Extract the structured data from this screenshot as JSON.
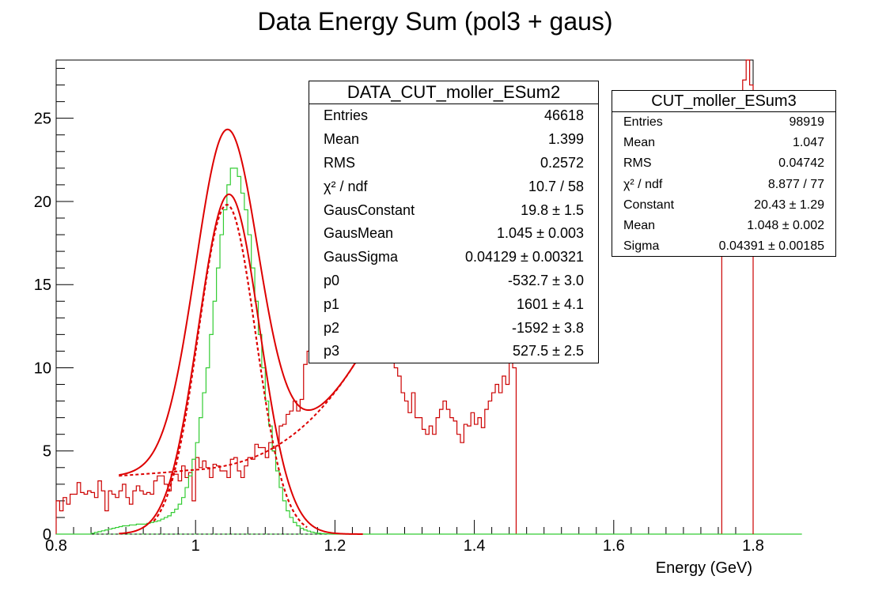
{
  "chart_data": {
    "type": "histogram",
    "title": "Data Energy Sum (pol3 + gaus)",
    "xlabel": "Energy (GeV)",
    "ylabel": "",
    "xlim": [
      0.8,
      1.8
    ],
    "ylim": [
      0,
      28.5
    ],
    "xticks": [
      "0.8",
      "1",
      "1.2",
      "1.4",
      "1.6",
      "1.8"
    ],
    "yticks": [
      "0",
      "5",
      "10",
      "15",
      "20",
      "25"
    ],
    "bin_width": 0.005,
    "colors": {
      "data": "#cc0000",
      "mc": "#33cc33",
      "fit": "#dd0000"
    },
    "series": [
      {
        "key": "data",
        "style": "step",
        "x_start": 0.8,
        "values": [
          2,
          1.4,
          2.2,
          1.8,
          2.4,
          2.4,
          3.1,
          2.5,
          2.4,
          2.6,
          2.5,
          2.2,
          3.2,
          2.6,
          1.4,
          2.6,
          2.4,
          2.2,
          2.6,
          3.0,
          2.2,
          1.8,
          2.6,
          2.9,
          2.6,
          2.4,
          2.5,
          2.4,
          3.2,
          3.5,
          3.5,
          3.0,
          2.6,
          3.6,
          3.6,
          3.2,
          4.1,
          3.4,
          3.7,
          2.0,
          4.6,
          4.0,
          4.4,
          4.0,
          3.4,
          4.2,
          4.1,
          3.8,
          3.8,
          3.4,
          4.5,
          4.6,
          3.8,
          3.4,
          4.1,
          4.6,
          4.5,
          5.4,
          5.2,
          5.2,
          4.6,
          5.5,
          5.0,
          5.3,
          6.5,
          6.6,
          7.2,
          7.4,
          8.0,
          7.4,
          8.1,
          10.2,
          11.0,
          12.0,
          15.0,
          16.0,
          19.0,
          20.0,
          23.0,
          24.4,
          24.0,
          24.7,
          24.4,
          22.0,
          24.5,
          24.0,
          23.0,
          22.0,
          21.5,
          20.5,
          19.5,
          18.0,
          16.5,
          15.0,
          14.0,
          12.5,
          11.5,
          10.0,
          9.5,
          8.5,
          8.0,
          7.3,
          8.5,
          7.0,
          7.0,
          6.3,
          6.0,
          6.5,
          6.0,
          7.0,
          7.5,
          8.0,
          7.5,
          7.0,
          6.8,
          6.0,
          5.5,
          6.6,
          6.5,
          7.3,
          6.6,
          7.0,
          6.4,
          7.5,
          8.0,
          8.5,
          9.0,
          8.5,
          9.5,
          9.0,
          10.5,
          10.0
        ]
      },
      {
        "key": "mc",
        "style": "step",
        "x_start": 0.8,
        "values": [
          0,
          0,
          0,
          0,
          0,
          0,
          0,
          0,
          0,
          0,
          0.05,
          0.1,
          0.15,
          0.2,
          0.25,
          0.3,
          0.35,
          0.4,
          0.45,
          0.5,
          0.5,
          0.55,
          0.55,
          0.6,
          0.6,
          0.6,
          0.65,
          0.7,
          0.75,
          0.8,
          0.9,
          1.0,
          1.1,
          1.3,
          1.5,
          1.8,
          2.2,
          2.8,
          3.5,
          4.5,
          5.5,
          7.0,
          8.5,
          10.0,
          12.0,
          14.0,
          16.0,
          18.0,
          19.5,
          21.0,
          22.0,
          22.0,
          21.5,
          20.5,
          19.5,
          18.0,
          16.0,
          14.0,
          12.0,
          10.0,
          8.0,
          6.5,
          5.0,
          3.8,
          2.8,
          2.0,
          1.4,
          1.0,
          0.7,
          0.5,
          0.35,
          0.25,
          0.18,
          0.12,
          0.08,
          0.05,
          0.03,
          0.02,
          0.01,
          0,
          0,
          0,
          0,
          0,
          0,
          0,
          0,
          0,
          0,
          0,
          0,
          0,
          0,
          0,
          0,
          0,
          0,
          0,
          0,
          0,
          0,
          0,
          0,
          0,
          0,
          0,
          0,
          0,
          0,
          0,
          0,
          0,
          0,
          0,
          0,
          0,
          0,
          0,
          0,
          0,
          0,
          0,
          0,
          0,
          0,
          0,
          0,
          0,
          0,
          0,
          0,
          0,
          0,
          0,
          0,
          0,
          0,
          0,
          0,
          0,
          0,
          0,
          0,
          0,
          0,
          0,
          0,
          0,
          0,
          0,
          0,
          0,
          0,
          0,
          0,
          0,
          0,
          0,
          0,
          0,
          0,
          0,
          0,
          0,
          0,
          0,
          0,
          0,
          0,
          0,
          0,
          0,
          0,
          0,
          0,
          0,
          0,
          0,
          0,
          0,
          0,
          0,
          0,
          0,
          0,
          0,
          0,
          0,
          0,
          0,
          0,
          0,
          0,
          0,
          0,
          0,
          0,
          0,
          0,
          0,
          0,
          0,
          0,
          0,
          0,
          0,
          0,
          0,
          0,
          0,
          0,
          0,
          0,
          0
        ]
      },
      {
        "key": "data_right",
        "style": "step",
        "x_start": 1.755,
        "values": [
          22.5,
          21.5,
          22.0,
          24.0,
          23.5,
          26.5,
          27.3,
          28.5,
          27.0
        ]
      }
    ],
    "fits": {
      "gaus_data": {
        "constant": 19.8,
        "mean": 1.045,
        "sigma": 0.04129
      },
      "gaus_mc": {
        "constant": 20.43,
        "mean": 1.048,
        "sigma": 0.04391
      },
      "background": {
        "x_range": [
          0.89,
          1.28
        ],
        "value_at_1p0": 3.8,
        "value_at_1p2": 7.5,
        "value_at_1p28": 14.3
      },
      "total_x_range": [
        0.89,
        1.24
      ],
      "total_peak": 24.0
    }
  },
  "stats_data": {
    "title": "DATA_CUT_moller_ESum2",
    "rows": [
      {
        "label": "Entries",
        "value": "46618"
      },
      {
        "label": "Mean",
        "value": "1.399"
      },
      {
        "label": "RMS",
        "value": "0.2572"
      },
      {
        "label": "χ² / ndf",
        "value": "10.7 / 58"
      },
      {
        "label": "GausConstant",
        "value": "19.8 ± 1.5"
      },
      {
        "label": "GausMean",
        "value": "1.045 ± 0.003"
      },
      {
        "label": "GausSigma",
        "value": "0.04129 ± 0.00321"
      },
      {
        "label": "p0",
        "value": "-532.7 ± 3.0"
      },
      {
        "label": "p1",
        "value": "1601 ± 4.1"
      },
      {
        "label": "p2",
        "value": "-1592 ± 3.8"
      },
      {
        "label": "p3",
        "value": "527.5 ± 2.5"
      }
    ]
  },
  "stats_mc": {
    "title": "CUT_moller_ESum3",
    "rows": [
      {
        "label": "Entries",
        "value": "98919"
      },
      {
        "label": "Mean",
        "value": "1.047"
      },
      {
        "label": "RMS",
        "value": "0.04742"
      },
      {
        "label": "χ² / ndf",
        "value": "8.877 / 77"
      },
      {
        "label": "Constant",
        "value": "20.43 ± 1.29"
      },
      {
        "label": "Mean",
        "value": "1.048 ± 0.002"
      },
      {
        "label": "Sigma",
        "value": "0.04391 ± 0.00185"
      }
    ]
  }
}
